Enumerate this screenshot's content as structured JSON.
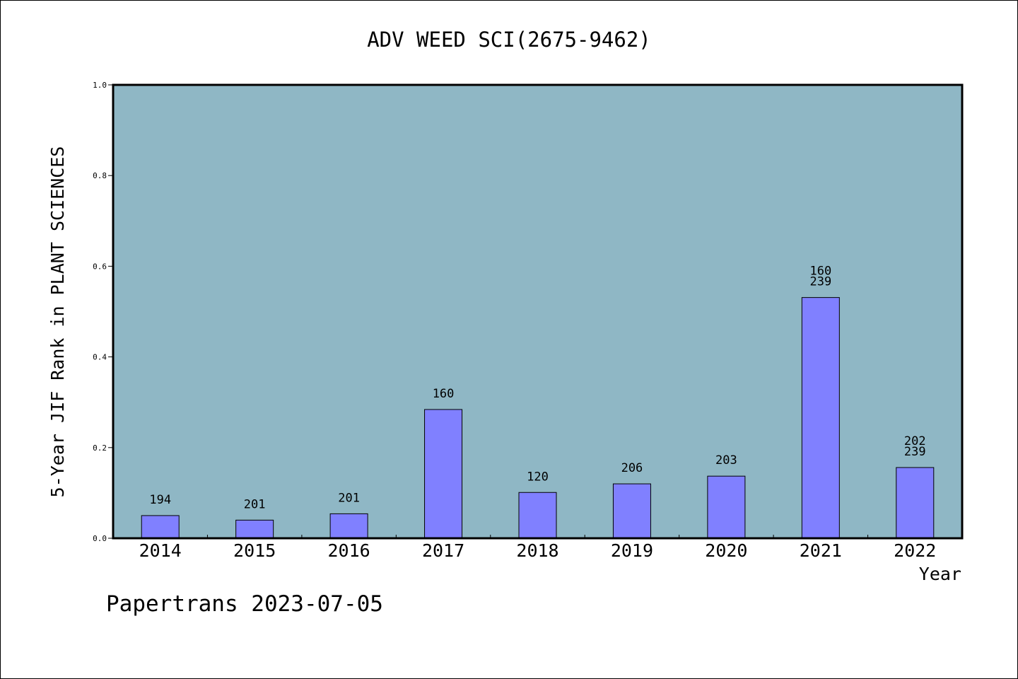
{
  "chart_data": {
    "type": "bar",
    "title": "ADV WEED SCI(2675-9462)",
    "xlabel": "Year",
    "ylabel": "5-Year JIF Rank in PLANT SCIENCES",
    "ylim": [
      0,
      1.0
    ],
    "yticks": [
      "0.0",
      "0.2",
      "0.4",
      "0.6",
      "0.8",
      "1.0"
    ],
    "categories": [
      "2014",
      "2015",
      "2016",
      "2017",
      "2018",
      "2019",
      "2020",
      "2021",
      "2022"
    ],
    "values": [
      0.05,
      0.04,
      0.054,
      0.284,
      0.101,
      0.12,
      0.137,
      0.531,
      0.156
    ],
    "labels": [
      [
        "194"
      ],
      [
        "201"
      ],
      [
        "201"
      ],
      [
        "160"
      ],
      [
        "120"
      ],
      [
        "206"
      ],
      [
        "203"
      ],
      [
        "160",
        "239"
      ],
      [
        "202",
        "239"
      ]
    ],
    "grid": false,
    "legend": "none",
    "colors": {
      "plot_background": "#8fb7c5",
      "bar_fill": "#8080ff",
      "bar_stroke": "#000000"
    }
  },
  "footer": "Papertrans 2023-07-05"
}
